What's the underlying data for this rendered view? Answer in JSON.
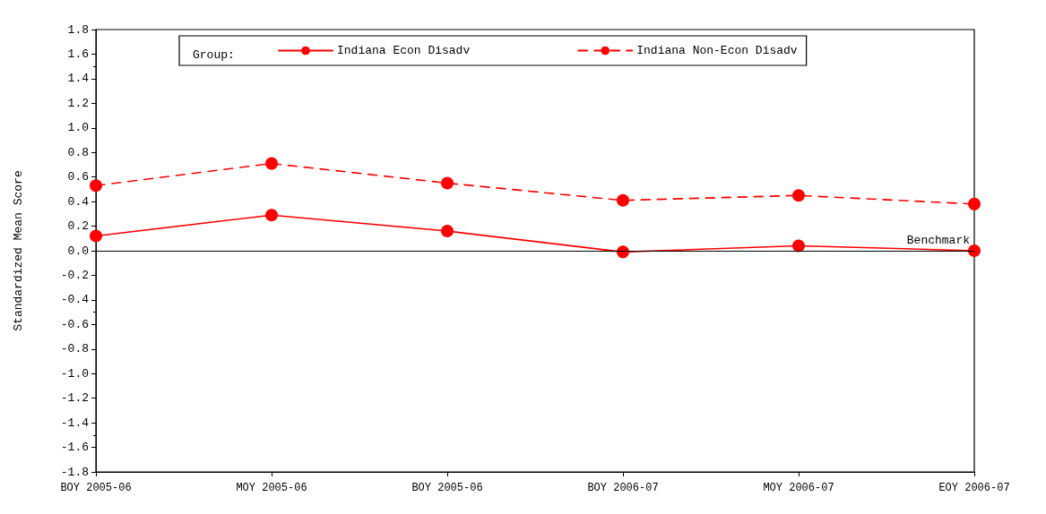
{
  "chart_data": {
    "type": "line",
    "ylabel": "Standardized Mean Score",
    "legend_title": "Group:",
    "categories": [
      "BOY 2005-06",
      "MOY 2005-06",
      "BOY 2005-06",
      "BOY 2006-07",
      "MOY 2006-07",
      "EOY 2006-07"
    ],
    "series": [
      {
        "name": "Indiana Econ Disadv",
        "color": "#ff0000",
        "line_style": "solid",
        "values": [
          0.12,
          0.29,
          0.16,
          -0.01,
          0.04,
          0.0
        ]
      },
      {
        "name": "Indiana Non-Econ Disadv",
        "color": "#ff0000",
        "line_style": "dashed",
        "values": [
          0.53,
          0.71,
          0.55,
          0.41,
          0.45,
          0.38
        ]
      }
    ],
    "ylim": [
      -1.8,
      1.8
    ],
    "yticks": [
      -1.8,
      -1.6,
      -1.4,
      -1.2,
      {
        "value": -1,
        "label": "-1.0"
      },
      -0.8,
      -0.6,
      -0.4,
      -0.2,
      {
        "value": 0,
        "label": "0.0"
      },
      0.2,
      0.4,
      0.6,
      0.8,
      {
        "value": 1,
        "label": "1.0"
      },
      1.2,
      1.4,
      1.6,
      1.8
    ],
    "ref_lines": [
      {
        "axis": "y",
        "value": 0,
        "label": "Benchmark",
        "color": "#000000"
      }
    ],
    "grid": false,
    "legend": "top",
    "marker": "circle"
  }
}
